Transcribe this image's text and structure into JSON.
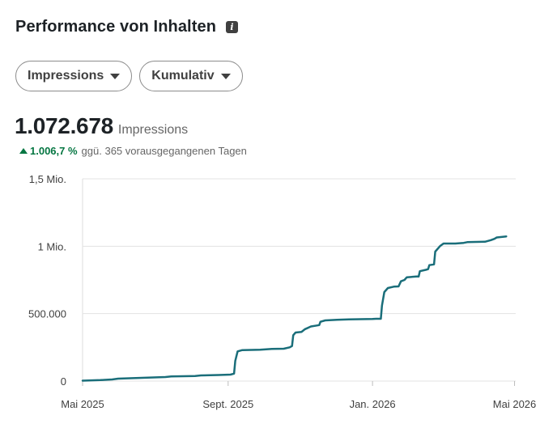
{
  "header": {
    "title": "Performance von Inhalten",
    "info_icon": "info-icon"
  },
  "filters": {
    "metric_label": "Impressions",
    "mode_label": "Kumulativ"
  },
  "summary": {
    "value": "1.072.678",
    "unit": "Impressions",
    "change": "1.006,7 %",
    "change_text": "ggü. 365 vorausgegangenen Tagen",
    "change_color": "#057642"
  },
  "chart_data": {
    "type": "line",
    "ylim": [
      0,
      1500000
    ],
    "yticks": [
      {
        "value": 0,
        "label": "0"
      },
      {
        "value": 500000,
        "label": "500.000"
      },
      {
        "value": 1000000,
        "label": "1 Mio."
      },
      {
        "value": 1500000,
        "label": "1,5 Mio."
      }
    ],
    "xlim": [
      0,
      366
    ],
    "xticks": [
      {
        "value": 0,
        "label": "Mai 2025"
      },
      {
        "value": 123,
        "label": "Sept. 2025"
      },
      {
        "value": 245,
        "label": "Jan. 2026"
      },
      {
        "value": 365,
        "label": "Mai 2026"
      }
    ],
    "line_color": "#1a6e7a",
    "grid": true,
    "series": [
      {
        "points": [
          [
            0,
            3000
          ],
          [
            15,
            7000
          ],
          [
            25,
            12000
          ],
          [
            30,
            18000
          ],
          [
            45,
            22000
          ],
          [
            55,
            26000
          ],
          [
            70,
            30000
          ],
          [
            75,
            34000
          ],
          [
            95,
            38000
          ],
          [
            100,
            42000
          ],
          [
            115,
            45000
          ],
          [
            125,
            48000
          ],
          [
            128,
            55000
          ],
          [
            129,
            150000
          ],
          [
            131,
            220000
          ],
          [
            135,
            230000
          ],
          [
            150,
            233000
          ],
          [
            160,
            238000
          ],
          [
            170,
            240000
          ],
          [
            175,
            250000
          ],
          [
            177,
            260000
          ],
          [
            178,
            340000
          ],
          [
            180,
            360000
          ],
          [
            185,
            365000
          ],
          [
            188,
            385000
          ],
          [
            193,
            405000
          ],
          [
            198,
            412000
          ],
          [
            200,
            415000
          ],
          [
            201,
            440000
          ],
          [
            205,
            450000
          ],
          [
            215,
            455000
          ],
          [
            225,
            458000
          ],
          [
            245,
            460000
          ],
          [
            248,
            462000
          ],
          [
            252,
            462000
          ],
          [
            253,
            560000
          ],
          [
            255,
            660000
          ],
          [
            258,
            690000
          ],
          [
            263,
            700000
          ],
          [
            267,
            702000
          ],
          [
            269,
            740000
          ],
          [
            272,
            750000
          ],
          [
            274,
            770000
          ],
          [
            282,
            775000
          ],
          [
            284,
            775000
          ],
          [
            285,
            815000
          ],
          [
            290,
            825000
          ],
          [
            292,
            830000
          ],
          [
            293,
            860000
          ],
          [
            297,
            865000
          ],
          [
            298,
            960000
          ],
          [
            302,
            1000000
          ],
          [
            305,
            1020000
          ],
          [
            315,
            1020000
          ],
          [
            322,
            1025000
          ],
          [
            325,
            1030000
          ],
          [
            340,
            1033000
          ],
          [
            345,
            1045000
          ],
          [
            348,
            1055000
          ],
          [
            350,
            1065000
          ],
          [
            358,
            1072678
          ]
        ]
      }
    ]
  }
}
